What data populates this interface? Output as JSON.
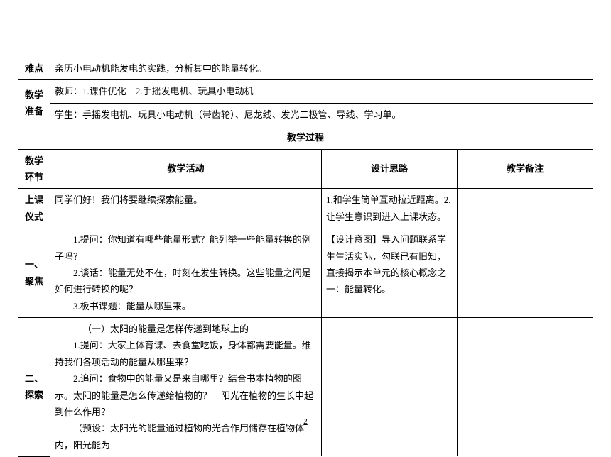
{
  "row1": {
    "label": "难点",
    "content": "亲历小电动机能发电的实践，分析其中的能量转化。"
  },
  "row2": {
    "label": "教学准备",
    "teacher": "教师：1.课件优化　2.手摇发电机、玩具小电动机",
    "student": "学生：手摇发电机、玩具小电动机（带齿轮）、尼龙线、发光二极管、导线、学习单。"
  },
  "processHeader": "教学过程",
  "columns": {
    "stage": "教学环节",
    "activity": "教学活动",
    "thought": "设计思路",
    "note": "教学备注"
  },
  "stages": {
    "ceremony": {
      "label": "上课仪式",
      "activity": "同学们好！我们将要继续探索能量。",
      "thought": "1.和学生简单互动拉近距离。2.让学生意识到进入上课状态。"
    },
    "focus": {
      "label": "一、聚焦",
      "line1": "1.提问：你知道有哪些能量形式？能列举一些能量转换的例子吗？",
      "line2": "2.谈话：能量无处不在，时刻在发生转换。这些能量之间是如何进行转换的呢？",
      "line3": "3.板书课题：能量从哪里来。",
      "thought": "【设计意图】导入问题联系学生生活实际，勾联已有旧知，直接揭示本单元的核心概念之一：能量转化。"
    },
    "explore": {
      "label": "二、探索",
      "title": "（一）太阳的能量是怎样传递到地球上的",
      "line1": "1.提问：大家上体育课、去食堂吃饭，身体都需要能量。维持我们各项活动的能量从哪里来？",
      "line2": "2.追问：食物中的能量又是来自哪里？结合书本植物的图示。太阳的能量是怎么传递给植物的？　阳光在植物的生长中起到什么作用？",
      "line3": "（预设：太阳光的能量通过植物的光合作用储存在植物体内，阳光能为"
    }
  },
  "pageNumber": "2"
}
